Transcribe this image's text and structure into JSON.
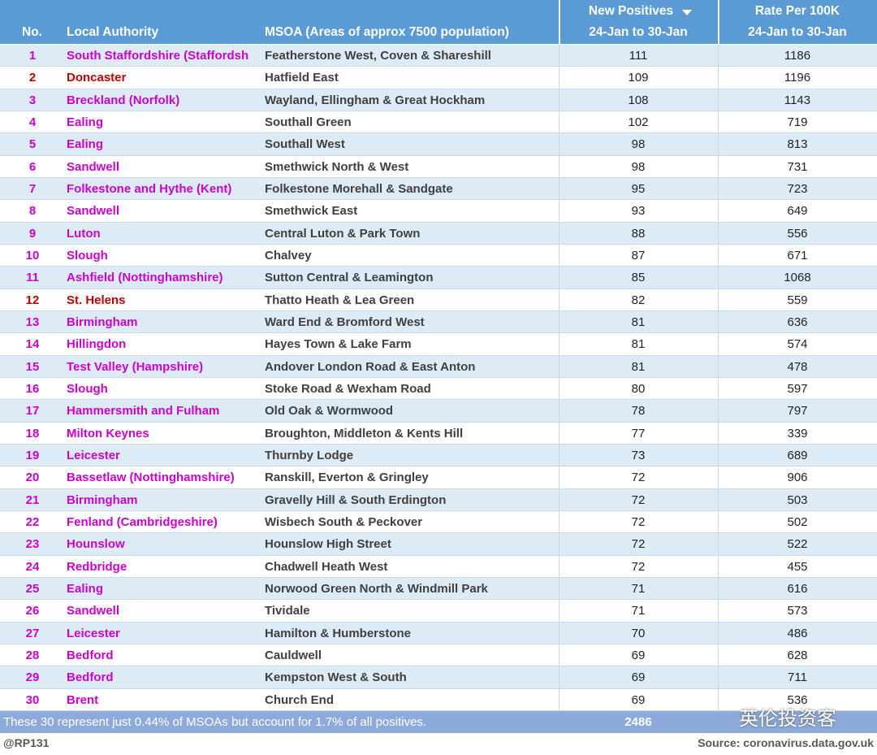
{
  "table": {
    "header": {
      "no": "No.",
      "authority": "Local Authority",
      "msoa": "MSOA (Areas of approx 7500 population)",
      "positives": [
        "New Positives",
        "24-Jan to 30-Jan"
      ],
      "rate": [
        "Rate Per 100K",
        "24-Jan to 30-Jan"
      ]
    },
    "rows": [
      {
        "no": 1,
        "authority": "South Staffordshire (Staffordsh",
        "msoa": "Featherstone West, Coven & Shareshill",
        "positives": 111,
        "rate": 1186,
        "color": "#cc00cc"
      },
      {
        "no": 2,
        "authority": "Doncaster",
        "msoa": "Hatfield East",
        "positives": 109,
        "rate": 1196,
        "color": "#c00000"
      },
      {
        "no": 3,
        "authority": "Breckland (Norfolk)",
        "msoa": "Wayland, Ellingham & Great Hockham",
        "positives": 108,
        "rate": 1143,
        "color": "#cc00cc"
      },
      {
        "no": 4,
        "authority": "Ealing",
        "msoa": "Southall Green",
        "positives": 102,
        "rate": 719,
        "color": "#cc00cc"
      },
      {
        "no": 5,
        "authority": "Ealing",
        "msoa": "Southall West",
        "positives": 98,
        "rate": 813,
        "color": "#cc00cc"
      },
      {
        "no": 6,
        "authority": "Sandwell",
        "msoa": "Smethwick North & West",
        "positives": 98,
        "rate": 731,
        "color": "#cc00cc"
      },
      {
        "no": 7,
        "authority": "Folkestone and Hythe (Kent)",
        "msoa": "Folkestone Morehall & Sandgate",
        "positives": 95,
        "rate": 723,
        "color": "#cc00cc"
      },
      {
        "no": 8,
        "authority": "Sandwell",
        "msoa": "Smethwick East",
        "positives": 93,
        "rate": 649,
        "color": "#cc00cc"
      },
      {
        "no": 9,
        "authority": "Luton",
        "msoa": "Central Luton & Park Town",
        "positives": 88,
        "rate": 556,
        "color": "#cc00cc"
      },
      {
        "no": 10,
        "authority": "Slough",
        "msoa": "Chalvey",
        "positives": 87,
        "rate": 671,
        "color": "#cc00cc"
      },
      {
        "no": 11,
        "authority": "Ashfield (Nottinghamshire)",
        "msoa": "Sutton Central & Leamington",
        "positives": 85,
        "rate": 1068,
        "color": "#cc00cc"
      },
      {
        "no": 12,
        "authority": "St. Helens",
        "msoa": "Thatto Heath & Lea Green",
        "positives": 82,
        "rate": 559,
        "color": "#c00000"
      },
      {
        "no": 13,
        "authority": "Birmingham",
        "msoa": "Ward End & Bromford West",
        "positives": 81,
        "rate": 636,
        "color": "#cc00cc"
      },
      {
        "no": 14,
        "authority": "Hillingdon",
        "msoa": "Hayes Town & Lake Farm",
        "positives": 81,
        "rate": 574,
        "color": "#cc00cc"
      },
      {
        "no": 15,
        "authority": "Test Valley (Hampshire)",
        "msoa": "Andover London Road & East Anton",
        "positives": 81,
        "rate": 478,
        "color": "#cc00cc"
      },
      {
        "no": 16,
        "authority": "Slough",
        "msoa": "Stoke Road & Wexham Road",
        "positives": 80,
        "rate": 597,
        "color": "#cc00cc"
      },
      {
        "no": 17,
        "authority": "Hammersmith and Fulham",
        "msoa": "Old Oak & Wormwood",
        "positives": 78,
        "rate": 797,
        "color": "#cc00cc"
      },
      {
        "no": 18,
        "authority": "Milton Keynes",
        "msoa": "Broughton, Middleton & Kents Hill",
        "positives": 77,
        "rate": 339,
        "color": "#cc00cc"
      },
      {
        "no": 19,
        "authority": "Leicester",
        "msoa": "Thurnby Lodge",
        "positives": 73,
        "rate": 689,
        "color": "#cc00cc"
      },
      {
        "no": 20,
        "authority": "Bassetlaw (Nottinghamshire)",
        "msoa": "Ranskill, Everton & Gringley",
        "positives": 72,
        "rate": 906,
        "color": "#cc00cc"
      },
      {
        "no": 21,
        "authority": "Birmingham",
        "msoa": "Gravelly Hill & South Erdington",
        "positives": 72,
        "rate": 503,
        "color": "#cc00cc"
      },
      {
        "no": 22,
        "authority": "Fenland (Cambridgeshire)",
        "msoa": "Wisbech South & Peckover",
        "positives": 72,
        "rate": 502,
        "color": "#cc00cc"
      },
      {
        "no": 23,
        "authority": "Hounslow",
        "msoa": "Hounslow High Street",
        "positives": 72,
        "rate": 522,
        "color": "#cc00cc"
      },
      {
        "no": 24,
        "authority": "Redbridge",
        "msoa": "Chadwell Heath West",
        "positives": 72,
        "rate": 455,
        "color": "#cc00cc"
      },
      {
        "no": 25,
        "authority": "Ealing",
        "msoa": "Norwood Green North & Windmill Park",
        "positives": 71,
        "rate": 616,
        "color": "#cc00cc"
      },
      {
        "no": 26,
        "authority": "Sandwell",
        "msoa": "Tividale",
        "positives": 71,
        "rate": 573,
        "color": "#cc00cc"
      },
      {
        "no": 27,
        "authority": "Leicester",
        "msoa": "Hamilton & Humberstone",
        "positives": 70,
        "rate": 486,
        "color": "#cc00cc"
      },
      {
        "no": 28,
        "authority": "Bedford",
        "msoa": "Cauldwell",
        "positives": 69,
        "rate": 628,
        "color": "#cc00cc"
      },
      {
        "no": 29,
        "authority": "Bedford",
        "msoa": "Kempston West & South",
        "positives": 69,
        "rate": 711,
        "color": "#cc00cc"
      },
      {
        "no": 30,
        "authority": "Brent",
        "msoa": "Church End",
        "positives": 69,
        "rate": 536,
        "color": "#cc00cc"
      }
    ],
    "footer": {
      "note": "These 30 represent just 0.44% of MSOAs but account for 1.7% of all positives.",
      "total": 2486
    }
  },
  "credit": "@RP131",
  "source": "Source: coronavirus.data.gov.uk",
  "watermark": "英伦投资客"
}
